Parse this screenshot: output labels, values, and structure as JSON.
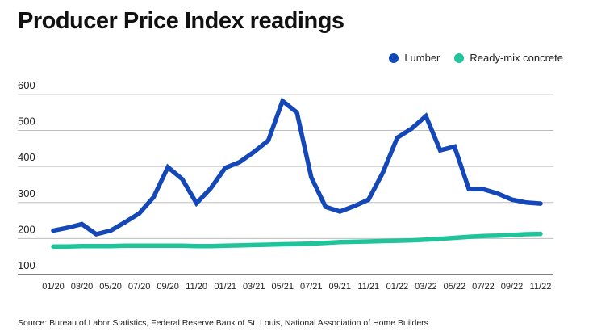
{
  "title": "Producer Price Index readings",
  "source": "Source: Bureau of Labor Statistics, Federal Reserve Bank of St. Louis, National Association of Home Builders",
  "chart_data": {
    "type": "line",
    "title": "Producer Price Index readings",
    "xlabel": "",
    "ylabel": "",
    "ylim": [
      100,
      620
    ],
    "yticks": [
      100,
      200,
      300,
      400,
      500,
      600
    ],
    "grid": true,
    "legend_position": "top-right",
    "categories": [
      "01/20",
      "02/20",
      "03/20",
      "04/20",
      "05/20",
      "06/20",
      "07/20",
      "08/20",
      "09/20",
      "10/20",
      "11/20",
      "12/20",
      "01/21",
      "02/21",
      "03/21",
      "04/21",
      "05/21",
      "06/21",
      "07/21",
      "08/21",
      "09/21",
      "10/21",
      "11/21",
      "12/21",
      "01/22",
      "02/22",
      "03/22",
      "04/22",
      "05/22",
      "06/22",
      "07/22",
      "08/22",
      "09/22",
      "10/22",
      "11/22"
    ],
    "tick_labels": [
      "01/20",
      "03/20",
      "05/20",
      "07/20",
      "09/20",
      "11/20",
      "01/21",
      "03/21",
      "05/21",
      "07/21",
      "09/21",
      "11/21",
      "01/22",
      "03/22",
      "05/22",
      "07/22",
      "09/22",
      "11/22"
    ],
    "series": [
      {
        "name": "Lumber",
        "color": "#1447b8",
        "values": [
          222,
          230,
          240,
          212,
          222,
          245,
          270,
          315,
          398,
          365,
          298,
          340,
          396,
          412,
          440,
          472,
          582,
          550,
          370,
          288,
          275,
          290,
          308,
          383,
          480,
          505,
          540,
          445,
          455,
          337,
          337,
          325,
          308,
          300,
          297
        ]
      },
      {
        "name": "Ready-mix concrete",
        "color": "#1fc49a",
        "values": [
          178,
          178,
          179,
          179,
          179,
          180,
          180,
          180,
          180,
          180,
          179,
          179,
          180,
          181,
          182,
          183,
          184,
          185,
          186,
          188,
          190,
          191,
          192,
          193,
          194,
          195,
          197,
          199,
          202,
          205,
          207,
          208,
          210,
          212,
          213
        ]
      }
    ]
  }
}
